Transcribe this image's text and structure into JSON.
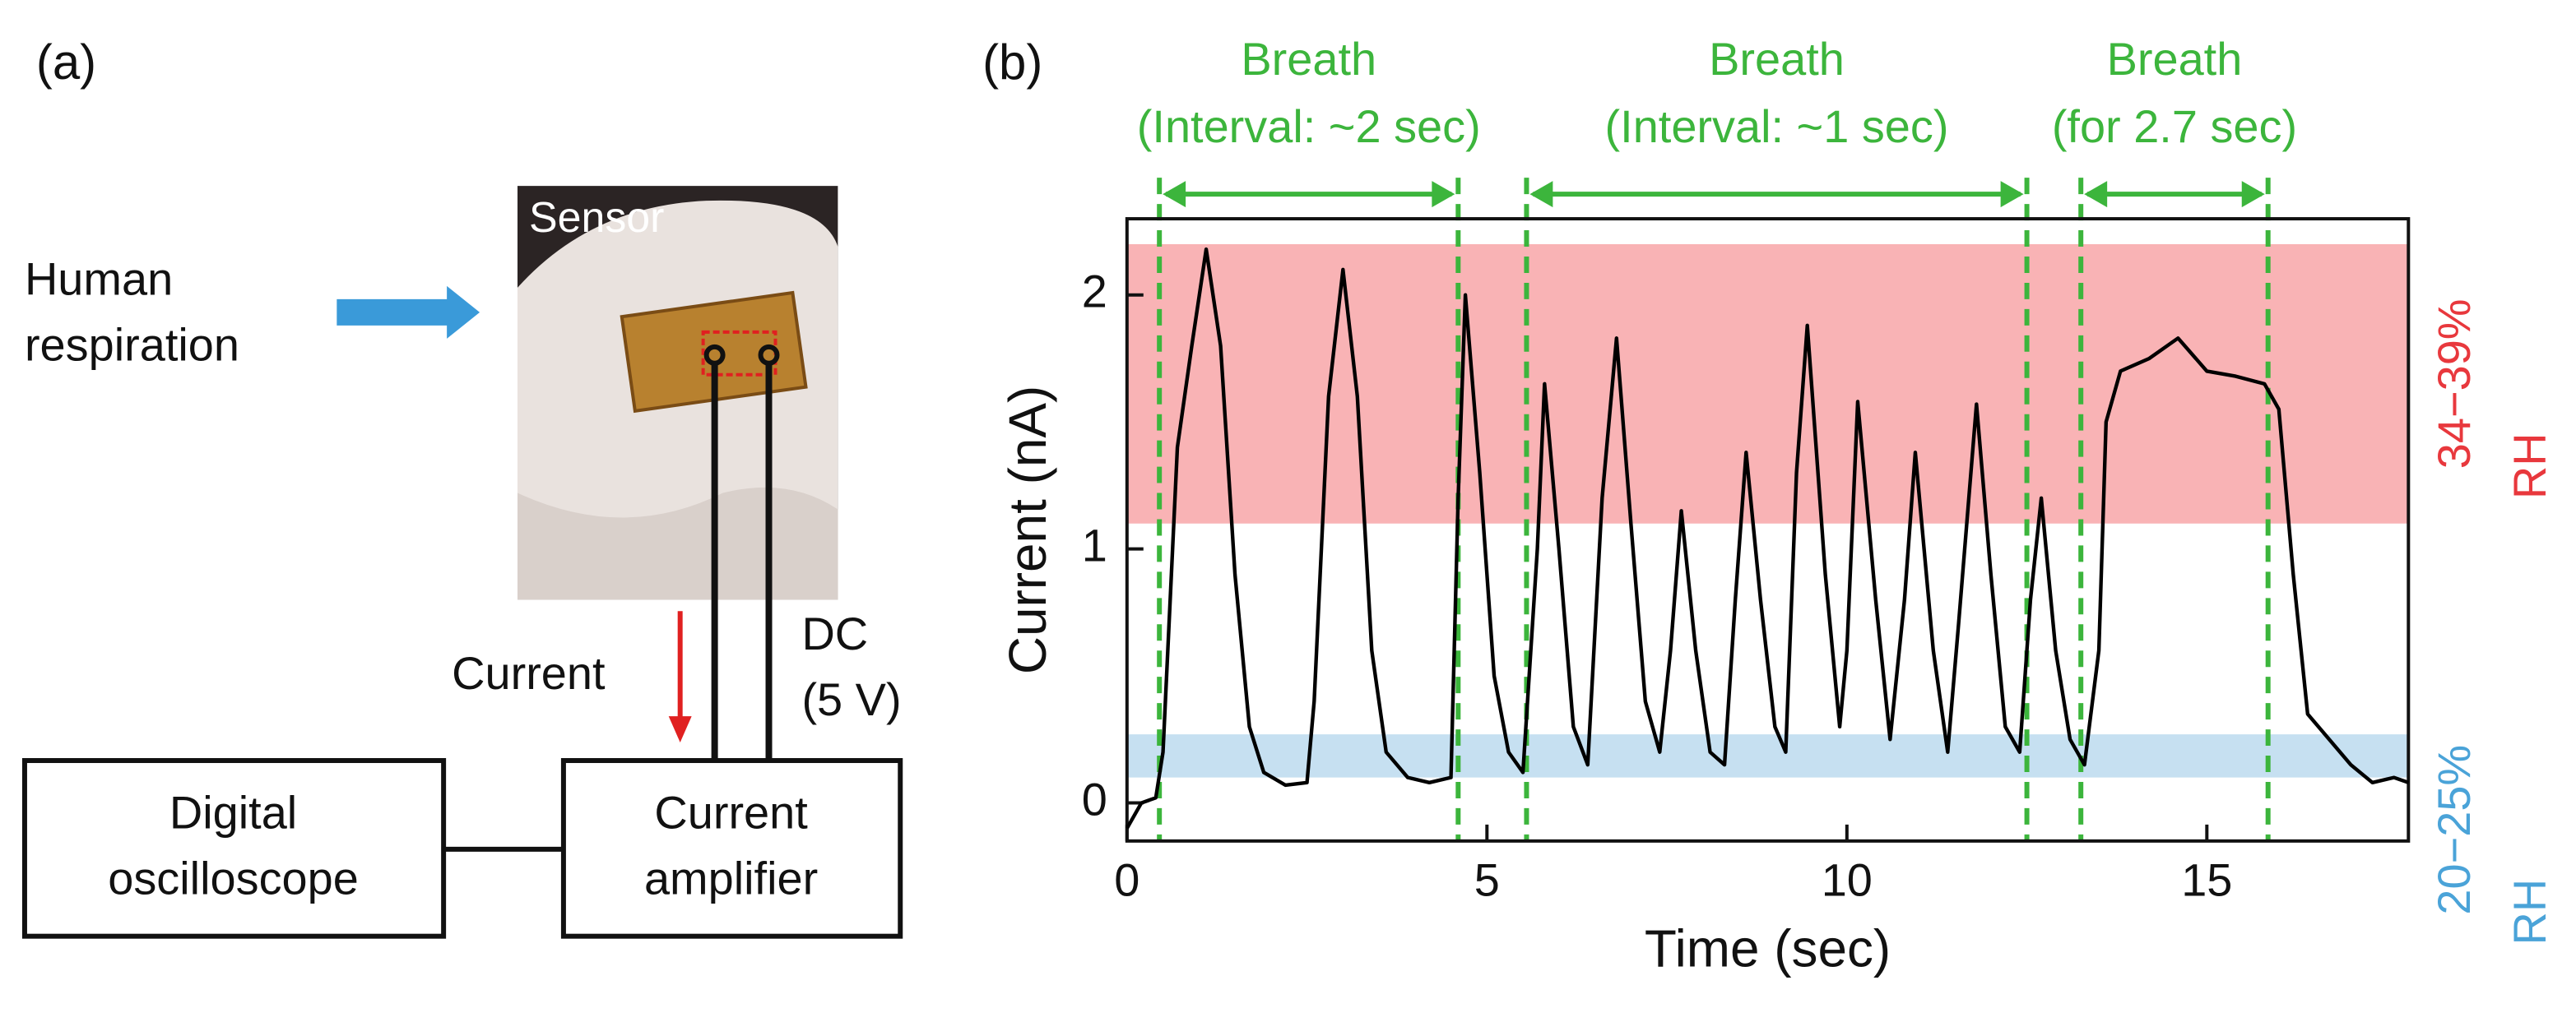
{
  "panel_a": {
    "label": "(a)",
    "photo_label": "Sensor",
    "input": [
      "Human",
      "respiration"
    ],
    "current": "Current",
    "dc": [
      "DC",
      "(5 V)"
    ],
    "oscilloscope": [
      "Digital",
      "oscilloscope"
    ],
    "amplifier": [
      "Current",
      "amplifier"
    ]
  },
  "chart_data": {
    "type": "line",
    "panel_label": "(b)",
    "x_label": "Time (sec)",
    "y_label": "Current (nA)",
    "color": "#000000",
    "xlim": [
      0,
      17.8
    ],
    "ylim": [
      -0.15,
      2.3
    ],
    "xticks": [
      0,
      5,
      10,
      15
    ],
    "yticks": [
      0,
      1,
      2
    ],
    "bands": [
      {
        "label": "34−39%",
        "unit": "RH",
        "color": "#f9b3b5",
        "text_color": "#e8383d",
        "range": [
          1.1,
          2.2
        ]
      },
      {
        "label": "20−25%",
        "unit": "RH",
        "color": "#c6e0f1",
        "text_color": "#4aa3d8",
        "range": [
          0.1,
          0.27
        ]
      }
    ],
    "annotations": [
      {
        "text": "Breath",
        "subtext": "(Interval: ~2 sec)",
        "start": 0.45,
        "end": 4.6,
        "color": "#3cb53c"
      },
      {
        "text": "Breath",
        "subtext": "(Interval: ~1 sec)",
        "start": 5.55,
        "end": 12.5,
        "color": "#3cb53c"
      },
      {
        "text": "Breath",
        "subtext": "(for 2.7 sec)",
        "start": 13.25,
        "end": 15.85,
        "color": "#3cb53c"
      }
    ],
    "x": [
      0,
      0.2,
      0.4,
      0.5,
      0.7,
      0.9,
      1.1,
      1.3,
      1.5,
      1.7,
      1.9,
      2.2,
      2.5,
      2.6,
      2.8,
      3.0,
      3.2,
      3.4,
      3.6,
      3.9,
      4.2,
      4.5,
      4.6,
      4.7,
      4.9,
      5.1,
      5.3,
      5.5,
      5.7,
      5.8,
      6.0,
      6.2,
      6.4,
      6.6,
      6.8,
      7.0,
      7.2,
      7.4,
      7.55,
      7.7,
      7.9,
      8.1,
      8.3,
      8.45,
      8.6,
      8.8,
      9.0,
      9.15,
      9.3,
      9.45,
      9.7,
      9.9,
      10.0,
      10.15,
      10.4,
      10.6,
      10.8,
      10.95,
      11.2,
      11.4,
      11.55,
      11.8,
      12.0,
      12.2,
      12.4,
      12.55,
      12.7,
      12.9,
      13.1,
      13.3,
      13.5,
      13.6,
      13.8,
      14.2,
      14.6,
      15.0,
      15.4,
      15.8,
      16.0,
      16.2,
      16.4,
      16.7,
      17.0,
      17.3,
      17.6,
      17.8
    ],
    "values": [
      -0.1,
      0.0,
      0.02,
      0.2,
      1.4,
      1.8,
      2.18,
      1.8,
      0.9,
      0.3,
      0.12,
      0.07,
      0.08,
      0.4,
      1.6,
      2.1,
      1.6,
      0.6,
      0.2,
      0.1,
      0.08,
      0.1,
      1.2,
      2.0,
      1.3,
      0.5,
      0.2,
      0.12,
      1.0,
      1.65,
      1.0,
      0.3,
      0.15,
      1.2,
      1.83,
      1.1,
      0.4,
      0.2,
      0.6,
      1.15,
      0.6,
      0.2,
      0.15,
      0.8,
      1.38,
      0.8,
      0.3,
      0.2,
      1.3,
      1.88,
      0.9,
      0.3,
      0.6,
      1.58,
      0.8,
      0.25,
      0.8,
      1.38,
      0.6,
      0.2,
      0.7,
      1.57,
      0.9,
      0.3,
      0.2,
      0.8,
      1.2,
      0.6,
      0.25,
      0.15,
      0.6,
      1.5,
      1.7,
      1.75,
      1.83,
      1.7,
      1.68,
      1.65,
      1.55,
      0.9,
      0.35,
      0.25,
      0.15,
      0.08,
      0.1,
      0.08
    ]
  }
}
